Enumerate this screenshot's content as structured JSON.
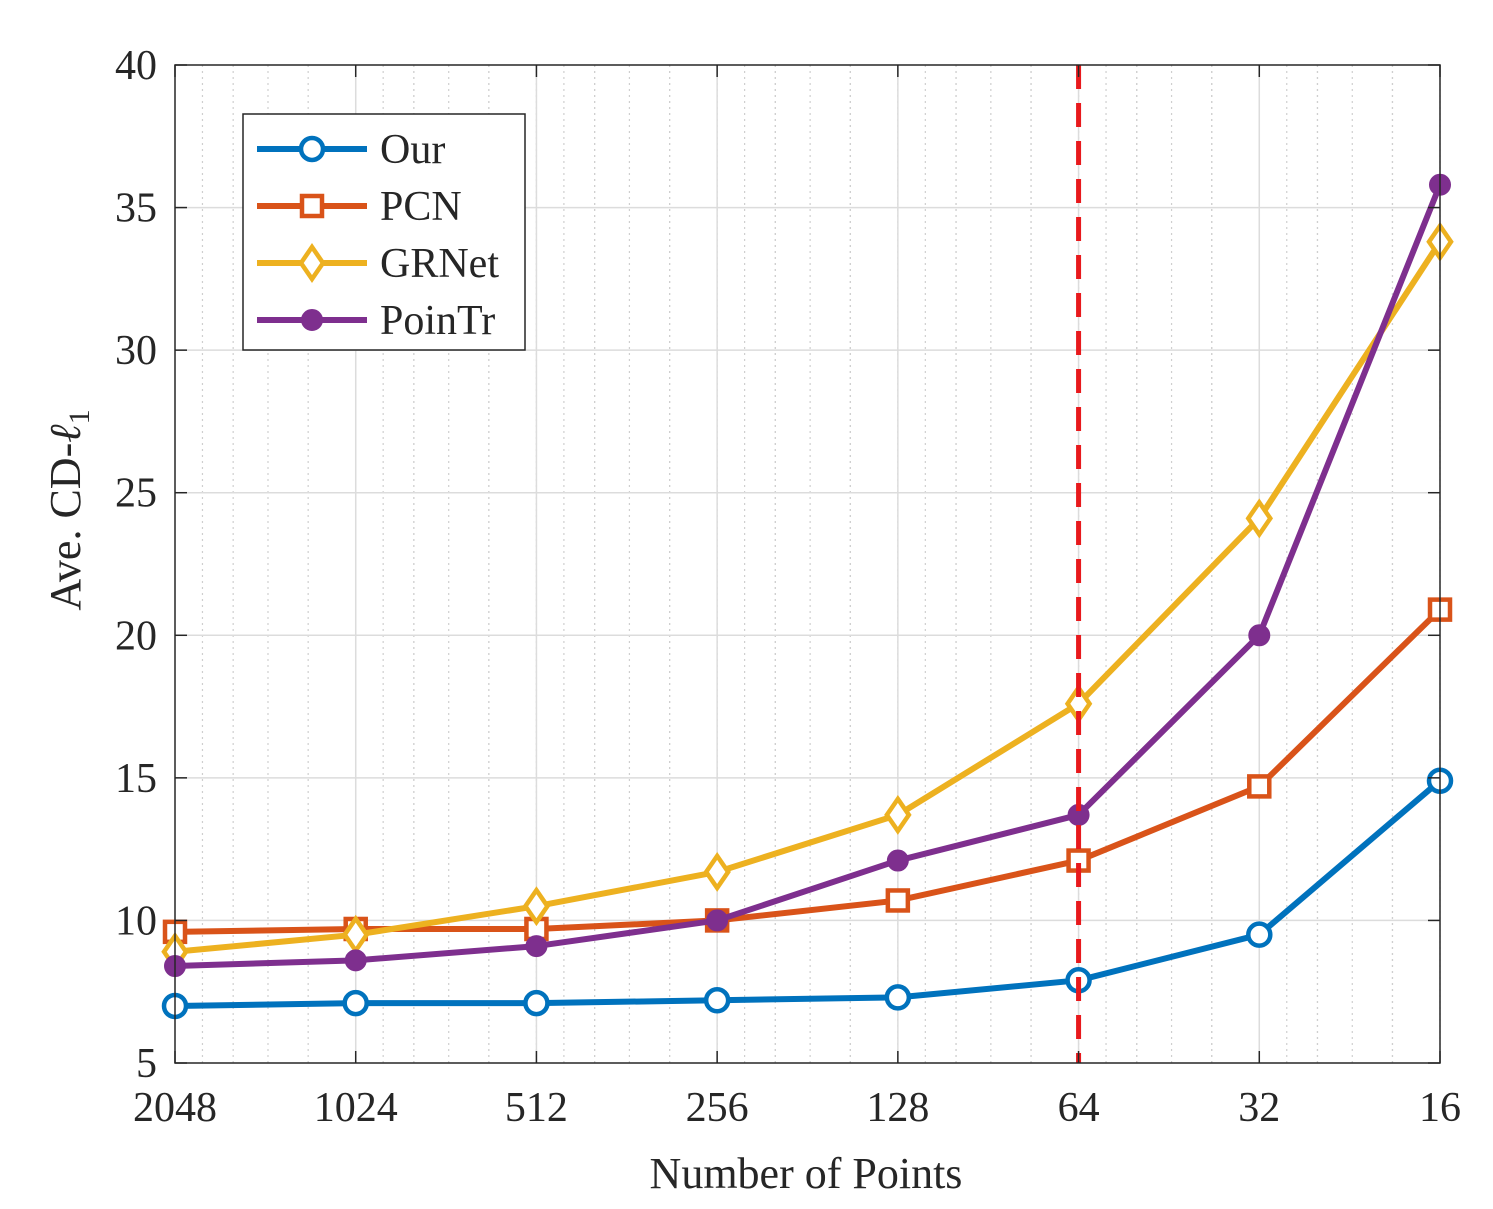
{
  "chart_data": {
    "type": "line",
    "xscale": "log2-reversed",
    "categories": [
      "2048",
      "1024",
      "512",
      "256",
      "128",
      "64",
      "32",
      "16"
    ],
    "xlabel": "Number of Points",
    "ylabel": "Ave. CD-",
    "ylabel_symbol": "ℓ",
    "ylabel_subscript": "1",
    "ylim": [
      5,
      40
    ],
    "yticks": [
      "5",
      "10",
      "15",
      "20",
      "25",
      "30",
      "35",
      "40"
    ],
    "grid": true,
    "legend_position": "top-left",
    "reference_line": {
      "x": "64",
      "color": "#e8191c",
      "style": "dashed"
    },
    "series": [
      {
        "name": "Our",
        "color": "#0072bd",
        "marker": "circle",
        "values": [
          7.0,
          7.1,
          7.1,
          7.2,
          7.3,
          7.9,
          9.5,
          14.9
        ]
      },
      {
        "name": "PCN",
        "color": "#d95319",
        "marker": "square",
        "values": [
          9.6,
          9.7,
          9.7,
          10.0,
          10.7,
          12.1,
          14.7,
          20.9
        ]
      },
      {
        "name": "GRNet",
        "color": "#edb120",
        "marker": "diamond",
        "values": [
          8.9,
          9.5,
          10.5,
          11.7,
          13.7,
          17.6,
          24.1,
          33.8
        ]
      },
      {
        "name": "PoinTr",
        "color": "#7e2f8e",
        "marker": "dot",
        "values": [
          8.4,
          8.6,
          9.1,
          10.0,
          12.1,
          13.7,
          20.0,
          35.8
        ]
      }
    ]
  }
}
